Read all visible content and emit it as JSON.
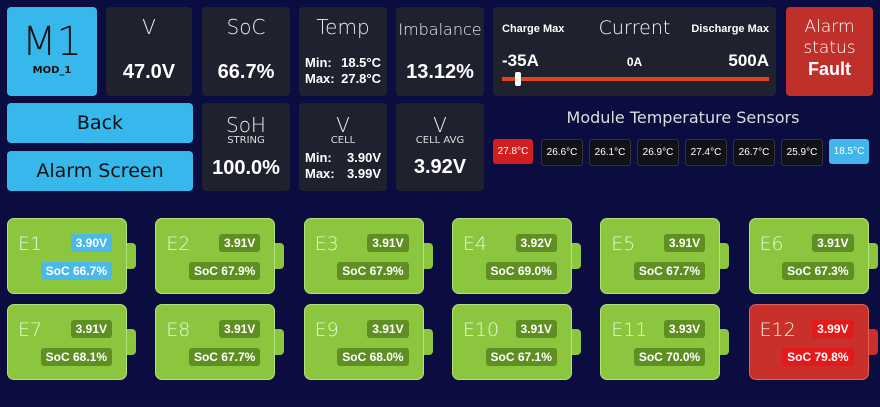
{
  "module": {
    "title": "M1",
    "name": "MOD_1"
  },
  "buttons": [
    "Back",
    "Alarm Screen"
  ],
  "voltage": {
    "label": "V",
    "value": "47.0V"
  },
  "soc": {
    "label": "SoC",
    "value": "66.7%"
  },
  "temp": {
    "label": "Temp",
    "min_label": "Min:",
    "min": "18.5°C",
    "max_label": "Max:",
    "max": "27.8°C"
  },
  "imbalance": {
    "label": "Imbalance",
    "value": "13.12%"
  },
  "soh": {
    "label": "SoH",
    "sublabel": "STRING",
    "value": "100.0%"
  },
  "cell_v": {
    "label": "V",
    "sublabel": "CELL",
    "min_label": "Min:",
    "min": "3.90V",
    "max_label": "Max:",
    "max": "3.99V"
  },
  "cell_avg": {
    "label": "V",
    "sublabel": "CELL AVG",
    "value": "3.92V"
  },
  "current": {
    "charge_label": "Charge Max",
    "title": "Current",
    "discharge_label": "Discharge Max",
    "min": "-35A",
    "mid": "0A",
    "max": "500A"
  },
  "alarm": {
    "label": "Alarm status",
    "value": "Fault"
  },
  "sensors": {
    "title": "Module Temperature Sensors",
    "items": [
      {
        "value": "27.8°C",
        "color": "#d11f1f"
      },
      {
        "value": "26.6°C",
        "color": "#111118"
      },
      {
        "value": "26.1°C",
        "color": "#111118"
      },
      {
        "value": "26.9°C",
        "color": "#111118"
      },
      {
        "value": "27.4°C",
        "color": "#111118"
      },
      {
        "value": "26.7°C",
        "color": "#111118"
      },
      {
        "value": "25.9°C",
        "color": "#111118"
      },
      {
        "value": "18.5°C",
        "color": "#42b6ea"
      }
    ]
  },
  "cells": [
    {
      "name": "E1",
      "voltage": "3.90V",
      "soc": "SoC 66.7%",
      "color": "#8cc63f",
      "badge_color": "#4ab8e8"
    },
    {
      "name": "E2",
      "voltage": "3.91V",
      "soc": "SoC 67.9%",
      "color": "#8cc63f",
      "badge_color": "#5f8f22"
    },
    {
      "name": "E3",
      "voltage": "3.91V",
      "soc": "SoC 67.9%",
      "color": "#8cc63f",
      "badge_color": "#5f8f22"
    },
    {
      "name": "E4",
      "voltage": "3.92V",
      "soc": "SoC 69.0%",
      "color": "#8cc63f",
      "badge_color": "#5f8f22"
    },
    {
      "name": "E5",
      "voltage": "3.91V",
      "soc": "SoC 67.7%",
      "color": "#8cc63f",
      "badge_color": "#5f8f22"
    },
    {
      "name": "E6",
      "voltage": "3.91V",
      "soc": "SoC 67.3%",
      "color": "#8cc63f",
      "badge_color": "#5f8f22"
    },
    {
      "name": "E7",
      "voltage": "3.91V",
      "soc": "SoC 68.1%",
      "color": "#8cc63f",
      "badge_color": "#5f8f22"
    },
    {
      "name": "E8",
      "voltage": "3.91V",
      "soc": "SoC 67.7%",
      "color": "#8cc63f",
      "badge_color": "#5f8f22"
    },
    {
      "name": "E9",
      "voltage": "3.91V",
      "soc": "SoC 68.0%",
      "color": "#8cc63f",
      "badge_color": "#5f8f22"
    },
    {
      "name": "E10",
      "voltage": "3.91V",
      "soc": "SoC 67.1%",
      "color": "#8cc63f",
      "badge_color": "#5f8f22"
    },
    {
      "name": "E11",
      "voltage": "3.93V",
      "soc": "SoC 70.0%",
      "color": "#8cc63f",
      "badge_color": "#5f8f22"
    },
    {
      "name": "E12",
      "voltage": "3.99V",
      "soc": "SoC 79.8%",
      "color": "#c9302c",
      "badge_color": "#e3191c"
    }
  ]
}
